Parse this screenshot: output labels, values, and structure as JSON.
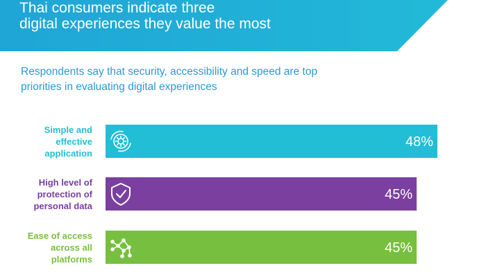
{
  "header": {
    "title_line1": "Thai consumers indicate three",
    "title_line2": "digital experiences they value the most",
    "banner_color": "#1fa5d6",
    "banner_color_light": "#22b9d8"
  },
  "subtitle": {
    "line1": "Respondents say that security, accessibility and speed are top",
    "line2": "priorities in evaluating digital experiences"
  },
  "chart_data": {
    "type": "bar",
    "orientation": "horizontal",
    "categories": [
      "Simple and effective application",
      "High level of protection of personal data",
      "Ease of access across all platforms"
    ],
    "category_lines": [
      [
        "Simple and",
        "effective",
        "application"
      ],
      [
        "High level of",
        "protection of",
        "personal data"
      ],
      [
        "Ease of access",
        "across all",
        "platforms"
      ]
    ],
    "values": [
      48,
      45,
      45
    ],
    "value_labels": [
      "48%",
      "45%",
      "45%"
    ],
    "colors": [
      "#22bed6",
      "#7b3fa0",
      "#77bf3f"
    ],
    "icons": [
      "gear-cycle-icon",
      "shield-check-icon",
      "network-nodes-icon"
    ],
    "unit": "%",
    "title": "",
    "xlabel": "",
    "ylabel": "",
    "grid": false,
    "legend": "none"
  }
}
